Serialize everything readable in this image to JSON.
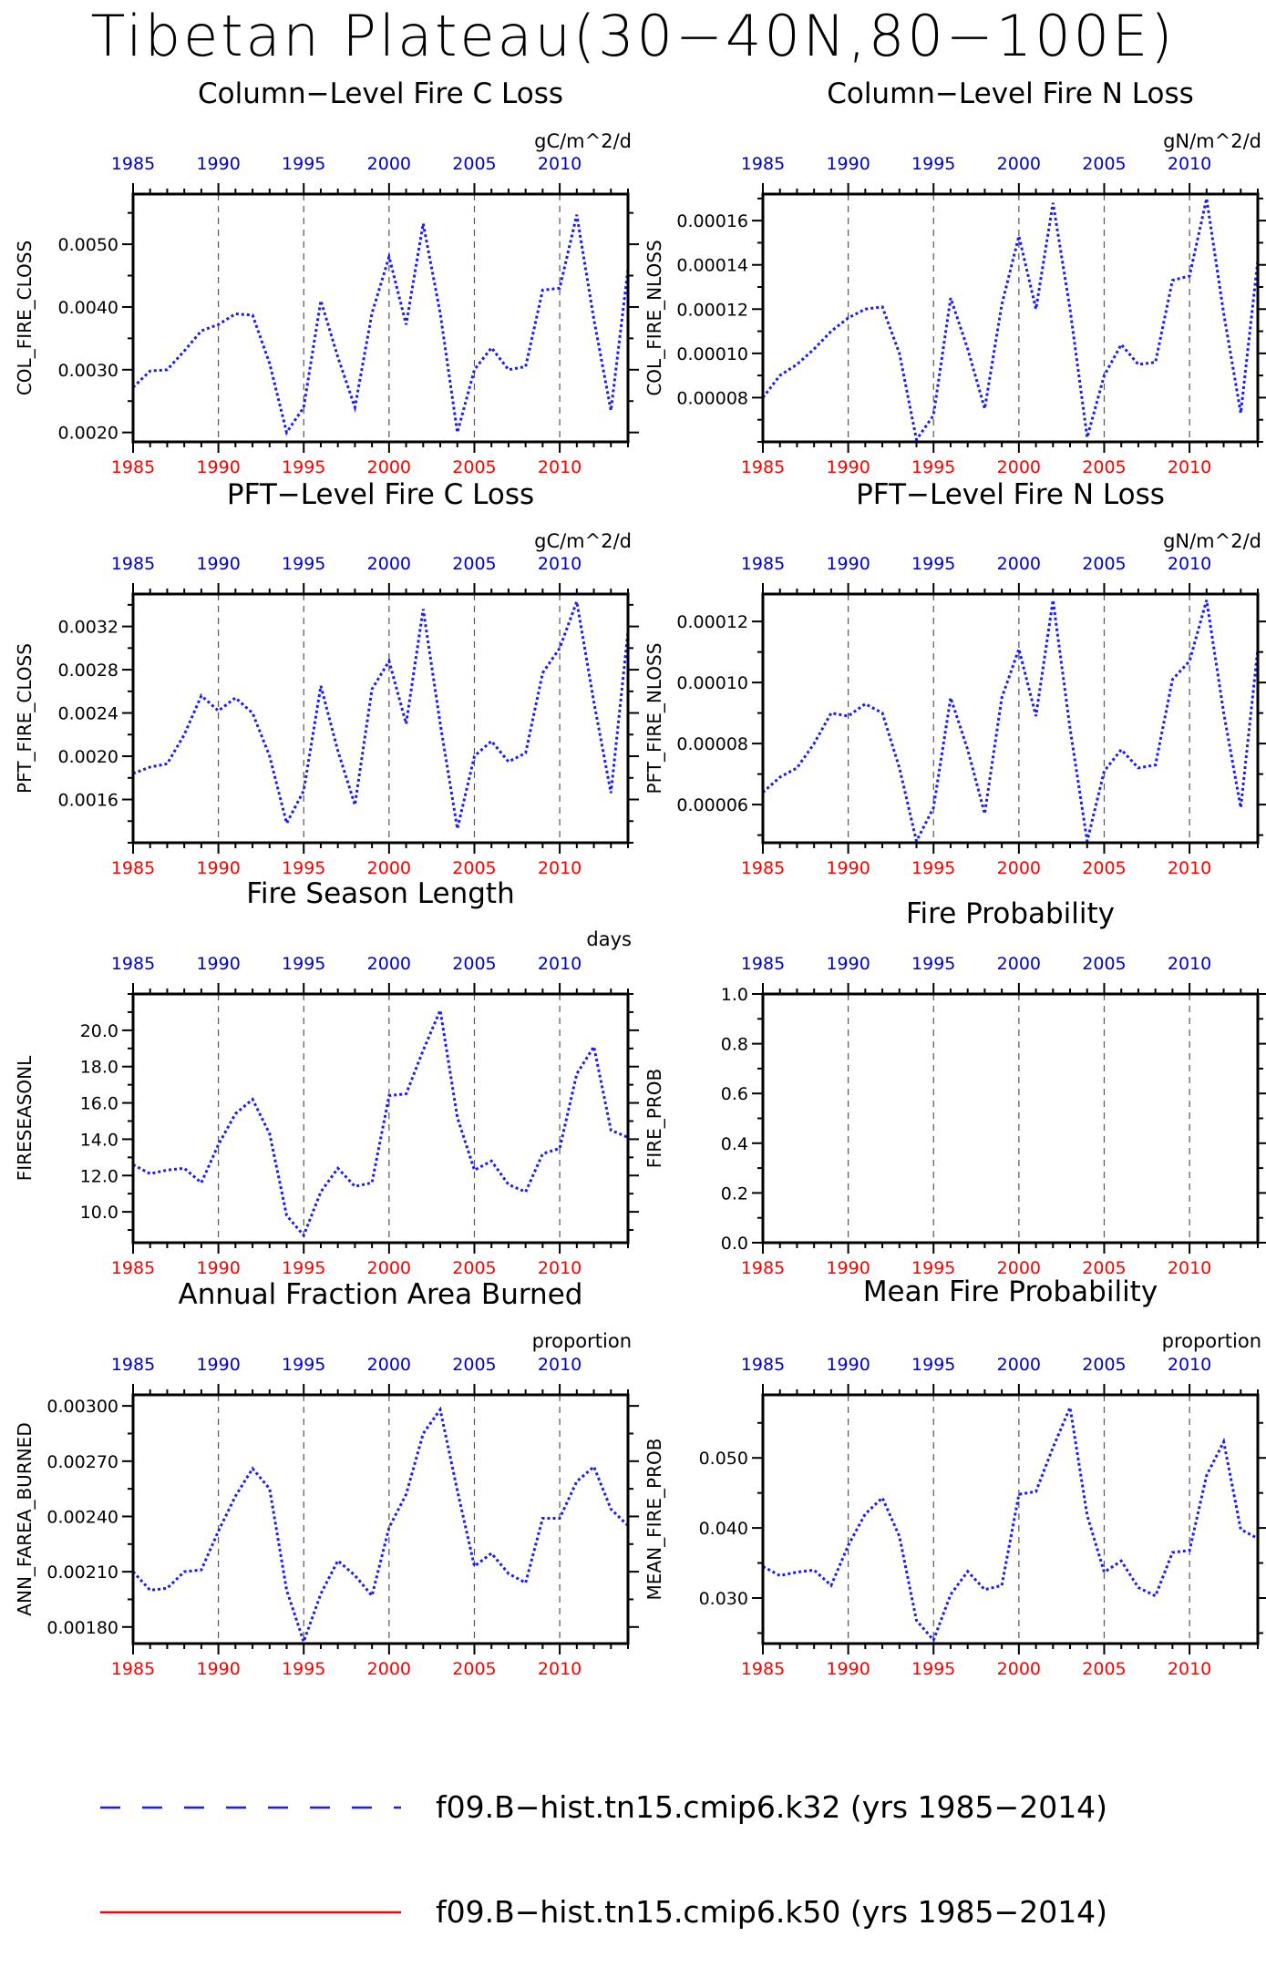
{
  "figure": {
    "title": "Tibetan Plateau(30−40N,80−100E)",
    "colors": {
      "series": "#1a1aff",
      "bottom_axis": "#ff0000",
      "top_axis": "#0000cc",
      "frame": "#000000",
      "grid": "#555555",
      "legend_red": "#ff0000"
    }
  },
  "chart_data": [
    {
      "type": "line",
      "title": "Column−Level Fire C Loss",
      "ylabel": "COL_FIRE_CLOSS",
      "units": "gC/m^2/d",
      "xlim": [
        1985,
        2014
      ],
      "ylim": [
        0.00185,
        0.0058
      ],
      "yticks": [
        0.002,
        0.003,
        0.004,
        0.005
      ],
      "ytick_labels": [
        "0.0020",
        "0.0030",
        "0.0040",
        "0.0050"
      ],
      "xticks": [
        1985,
        1990,
        1995,
        2000,
        2005,
        2010
      ],
      "xtick_labels": [
        "1985",
        "1990",
        "1995",
        "2000",
        "2005",
        "2010"
      ],
      "grid_years": [
        1990,
        1995,
        2000,
        2005,
        2010
      ],
      "x": [
        1985,
        1986,
        1987,
        1988,
        1989,
        1990,
        1991,
        1992,
        1993,
        1994,
        1995,
        1996,
        1997,
        1998,
        1999,
        2000,
        2001,
        2002,
        2003,
        2004,
        2005,
        2006,
        2007,
        2008,
        2009,
        2010,
        2011,
        2012,
        2013,
        2014
      ],
      "series": [
        {
          "values": [
            0.00272,
            0.00298,
            0.003,
            0.0033,
            0.00362,
            0.00372,
            0.00389,
            0.00387,
            0.0031,
            0.002,
            0.0024,
            0.0041,
            0.0032,
            0.0024,
            0.0039,
            0.0048,
            0.00372,
            0.00533,
            0.0039,
            0.002,
            0.003,
            0.00335,
            0.003,
            0.00305,
            0.00427,
            0.0043,
            0.00547,
            0.0038,
            0.00235,
            0.0046
          ]
        }
      ]
    },
    {
      "type": "line",
      "title": "Column−Level Fire N Loss",
      "ylabel": "COL_FIRE_NLOSS",
      "units": "gN/m^2/d",
      "xlim": [
        1985,
        2014
      ],
      "ylim": [
        6e-05,
        0.000172
      ],
      "yticks": [
        8e-05,
        0.0001,
        0.00012,
        0.00014,
        0.00016
      ],
      "ytick_labels": [
        "0.00008",
        "0.00010",
        "0.00012",
        "0.00014",
        "0.00016"
      ],
      "xticks": [
        1985,
        1990,
        1995,
        2000,
        2005,
        2010
      ],
      "xtick_labels": [
        "1985",
        "1990",
        "1995",
        "2000",
        "2005",
        "2010"
      ],
      "grid_years": [
        1990,
        1995,
        2000,
        2005,
        2010
      ],
      "x": [
        1985,
        1986,
        1987,
        1988,
        1989,
        1990,
        1991,
        1992,
        1993,
        1994,
        1995,
        1996,
        1997,
        1998,
        1999,
        2000,
        2001,
        2002,
        2003,
        2004,
        2005,
        2006,
        2007,
        2008,
        2009,
        2010,
        2011,
        2012,
        2013,
        2014
      ],
      "series": [
        {
          "values": [
            8e-05,
            9e-05,
            9.5e-05,
            0.000102,
            0.00011,
            0.000116,
            0.00012,
            0.000121,
            0.0001,
            6.1e-05,
            7.2e-05,
            0.000125,
            0.000102,
            7.5e-05,
            0.000122,
            0.000153,
            0.00012,
            0.000168,
            0.00012,
            6.2e-05,
            9e-05,
            0.000104,
            9.5e-05,
            9.6e-05,
            0.000133,
            0.000135,
            0.00017,
            0.000118,
            7.3e-05,
            0.000142
          ]
        }
      ]
    },
    {
      "type": "line",
      "title": "PFT−Level Fire C Loss",
      "ylabel": "PFT_FIRE_CLOSS",
      "units": "gC/m^2/d",
      "xlim": [
        1985,
        2014
      ],
      "ylim": [
        0.0012,
        0.0035
      ],
      "yticks": [
        0.0016,
        0.002,
        0.0024,
        0.0028,
        0.0032
      ],
      "ytick_labels": [
        "0.0016",
        "0.0020",
        "0.0024",
        "0.0028",
        "0.0032"
      ],
      "xticks": [
        1985,
        1990,
        1995,
        2000,
        2005,
        2010
      ],
      "xtick_labels": [
        "1985",
        "1990",
        "1995",
        "2000",
        "2005",
        "2010"
      ],
      "grid_years": [
        1990,
        1995,
        2000,
        2005,
        2010
      ],
      "x": [
        1985,
        1986,
        1987,
        1988,
        1989,
        1990,
        1991,
        1992,
        1993,
        1994,
        1995,
        1996,
        1997,
        1998,
        1999,
        2000,
        2001,
        2002,
        2003,
        2004,
        2005,
        2006,
        2007,
        2008,
        2009,
        2010,
        2011,
        2012,
        2013,
        2014
      ],
      "series": [
        {
          "values": [
            0.00184,
            0.0019,
            0.00193,
            0.0022,
            0.00256,
            0.00242,
            0.00254,
            0.0024,
            0.002,
            0.00138,
            0.00168,
            0.00265,
            0.00205,
            0.00155,
            0.00262,
            0.00288,
            0.0023,
            0.00336,
            0.0023,
            0.00133,
            0.002,
            0.00214,
            0.00195,
            0.00203,
            0.00277,
            0.003,
            0.00343,
            0.0025,
            0.00166,
            0.00315
          ]
        }
      ]
    },
    {
      "type": "line",
      "title": "PFT−Level Fire N Loss",
      "ylabel": "PFT_FIRE_NLOSS",
      "units": "gN/m^2/d",
      "xlim": [
        1985,
        2014
      ],
      "ylim": [
        4.75e-05,
        0.000129
      ],
      "yticks": [
        6e-05,
        8e-05,
        0.0001,
        0.00012
      ],
      "ytick_labels": [
        "0.00006",
        "0.00008",
        "0.00010",
        "0.00012"
      ],
      "xticks": [
        1985,
        1990,
        1995,
        2000,
        2005,
        2010
      ],
      "xtick_labels": [
        "1985",
        "1990",
        "1995",
        "2000",
        "2005",
        "2010"
      ],
      "grid_years": [
        1990,
        1995,
        2000,
        2005,
        2010
      ],
      "x": [
        1985,
        1986,
        1987,
        1988,
        1989,
        1990,
        1991,
        1992,
        1993,
        1994,
        1995,
        1996,
        1997,
        1998,
        1999,
        2000,
        2001,
        2002,
        2003,
        2004,
        2005,
        2006,
        2007,
        2008,
        2009,
        2010,
        2011,
        2012,
        2013,
        2014
      ],
      "series": [
        {
          "values": [
            6.4e-05,
            6.9e-05,
            7.2e-05,
            8e-05,
            9e-05,
            8.9e-05,
            9.3e-05,
            9e-05,
            7.2e-05,
            4.8e-05,
            5.9e-05,
            9.5e-05,
            7.8e-05,
            5.7e-05,
            9.5e-05,
            0.000111,
            8.9e-05,
            0.000127,
            8.5e-05,
            4.8e-05,
            7.1e-05,
            7.8e-05,
            7.2e-05,
            7.3e-05,
            0.000101,
            0.000107,
            0.000127,
            9e-05,
            5.9e-05,
            0.000111
          ]
        }
      ]
    },
    {
      "type": "line",
      "title": "Fire Season Length",
      "ylabel": "FIRESEASONL",
      "units": "days",
      "xlim": [
        1985,
        2014
      ],
      "ylim": [
        8.3,
        22
      ],
      "yticks": [
        10,
        12,
        14,
        16,
        18,
        20
      ],
      "ytick_labels": [
        "10.0",
        "12.0",
        "14.0",
        "16.0",
        "18.0",
        "20.0"
      ],
      "xticks": [
        1985,
        1990,
        1995,
        2000,
        2005,
        2010
      ],
      "xtick_labels": [
        "1985",
        "1990",
        "1995",
        "2000",
        "2005",
        "2010"
      ],
      "grid_years": [
        1990,
        1995,
        2000,
        2005,
        2010
      ],
      "x": [
        1985,
        1986,
        1987,
        1988,
        1989,
        1990,
        1991,
        1992,
        1993,
        1994,
        1995,
        1996,
        1997,
        1998,
        1999,
        2000,
        2001,
        2002,
        2003,
        2004,
        2005,
        2006,
        2007,
        2008,
        2009,
        2010,
        2011,
        2012,
        2013,
        2014
      ],
      "series": [
        {
          "values": [
            12.6,
            12.1,
            12.3,
            12.4,
            11.6,
            13.7,
            15.4,
            16.2,
            14.3,
            9.8,
            8.7,
            11.1,
            12.4,
            11.4,
            11.6,
            16.4,
            16.5,
            18.9,
            21.1,
            15.2,
            12.3,
            12.8,
            11.5,
            11.1,
            13.2,
            13.5,
            17.6,
            19.1,
            14.5,
            14.1
          ]
        }
      ]
    },
    {
      "type": "line",
      "title": "Fire Probability",
      "ylabel": "FIRE_PROB",
      "units": "",
      "xlim": [
        1985,
        2014
      ],
      "ylim": [
        0,
        1.0
      ],
      "yticks": [
        0,
        0.2,
        0.4,
        0.6,
        0.8,
        1.0
      ],
      "ytick_labels": [
        "0.0",
        "0.2",
        "0.4",
        "0.6",
        "0.8",
        "1.0"
      ],
      "xticks": [
        1985,
        1990,
        1995,
        2000,
        2005,
        2010
      ],
      "xtick_labels": [
        "1985",
        "1990",
        "1995",
        "2000",
        "2005",
        "2010"
      ],
      "grid_years": [
        1990,
        1995,
        2000,
        2005,
        2010
      ],
      "x": [],
      "series": [
        {
          "values": []
        }
      ]
    },
    {
      "type": "line",
      "title": "Annual Fraction Area Burned",
      "ylabel": "ANN_FAREA_BURNED",
      "units": "proportion",
      "xlim": [
        1985,
        2014
      ],
      "ylim": [
        0.00171,
        0.00306
      ],
      "yticks": [
        0.0018,
        0.0021,
        0.0024,
        0.0027,
        0.003
      ],
      "ytick_labels": [
        "0.00180",
        "0.00210",
        "0.00240",
        "0.00270",
        "0.00300"
      ],
      "xticks": [
        1985,
        1990,
        1995,
        2000,
        2005,
        2010
      ],
      "xtick_labels": [
        "1985",
        "1990",
        "1995",
        "2000",
        "2005",
        "2010"
      ],
      "grid_years": [
        1990,
        1995,
        2000,
        2005,
        2010
      ],
      "x": [
        1985,
        1986,
        1987,
        1988,
        1989,
        1990,
        1991,
        1992,
        1993,
        1994,
        1995,
        1996,
        1997,
        1998,
        1999,
        2000,
        2001,
        2002,
        2003,
        2004,
        2005,
        2006,
        2007,
        2008,
        2009,
        2010,
        2011,
        2012,
        2013,
        2014
      ],
      "series": [
        {
          "values": [
            0.0021,
            0.002,
            0.00201,
            0.0021,
            0.00211,
            0.00232,
            0.00251,
            0.00266,
            0.00255,
            0.002,
            0.00172,
            0.00198,
            0.00216,
            0.00208,
            0.00197,
            0.00234,
            0.00252,
            0.00285,
            0.00298,
            0.00254,
            0.00213,
            0.0022,
            0.00209,
            0.00204,
            0.00239,
            0.00239,
            0.00259,
            0.00267,
            0.00244,
            0.00235
          ]
        }
      ]
    },
    {
      "type": "line",
      "title": "Mean Fire Probability",
      "ylabel": "MEAN_FIRE_PROB",
      "units": "proportion",
      "xlim": [
        1985,
        2014
      ],
      "ylim": [
        0.0235,
        0.059
      ],
      "yticks": [
        0.03,
        0.04,
        0.05
      ],
      "ytick_labels": [
        "0.030",
        "0.040",
        "0.050"
      ],
      "xticks": [
        1985,
        1990,
        1995,
        2000,
        2005,
        2010
      ],
      "xtick_labels": [
        "1985",
        "1990",
        "1995",
        "2000",
        "2005",
        "2010"
      ],
      "grid_years": [
        1990,
        1995,
        2000,
        2005,
        2010
      ],
      "x": [
        1985,
        1986,
        1987,
        1988,
        1989,
        1990,
        1991,
        1992,
        1993,
        1994,
        1995,
        1996,
        1997,
        1998,
        1999,
        2000,
        2001,
        2002,
        2003,
        2004,
        2005,
        2006,
        2007,
        2008,
        2009,
        2010,
        2011,
        2012,
        2013,
        2014
      ],
      "series": [
        {
          "values": [
            0.0345,
            0.0332,
            0.0337,
            0.034,
            0.0318,
            0.0375,
            0.042,
            0.0443,
            0.0388,
            0.0268,
            0.024,
            0.0305,
            0.0338,
            0.0312,
            0.0318,
            0.0448,
            0.0452,
            0.0515,
            0.0572,
            0.0418,
            0.0337,
            0.0353,
            0.0315,
            0.0303,
            0.0365,
            0.0368,
            0.0475,
            0.0523,
            0.0398,
            0.0385
          ]
        }
      ]
    }
  ],
  "legend": [
    {
      "label": "f09.B−hist.tn15.cmip6.k32 (yrs 1985−2014)",
      "style": "dashed",
      "color": "#1a1aff"
    },
    {
      "label": "f09.B−hist.tn15.cmip6.k50 (yrs 1985−2014)",
      "style": "solid",
      "color": "#ff0000"
    }
  ]
}
